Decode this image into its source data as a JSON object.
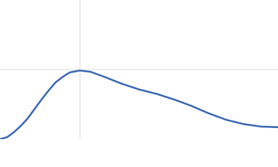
{
  "chart_data": {
    "type": "line",
    "x": [
      0,
      0.15,
      0.3,
      0.45,
      0.6,
      0.75,
      0.9,
      1.05,
      1.2,
      1.36,
      1.51,
      1.73,
      1.96,
      2.26,
      2.64,
      3.01,
      3.39,
      3.77,
      4.14,
      4.52,
      4.89,
      5.27,
      5.65,
      6.02
    ],
    "series": [
      {
        "color": "#3a66b0",
        "values": [
          0,
          0.03,
          0.11,
          0.21,
          0.33,
          0.48,
          0.63,
          0.77,
          0.9,
          0.99,
          1.06,
          1.09,
          1.07,
          0.99,
          0.88,
          0.79,
          0.72,
          0.63,
          0.53,
          0.41,
          0.31,
          0.24,
          0.2,
          0.19
        ]
      }
    ],
    "reference": {
      "x": 1.732,
      "y": 1.104,
      "color": "#d9d9d9"
    },
    "xlim": [
      0,
      6.02
    ],
    "ylim": [
      0,
      2.21
    ]
  }
}
